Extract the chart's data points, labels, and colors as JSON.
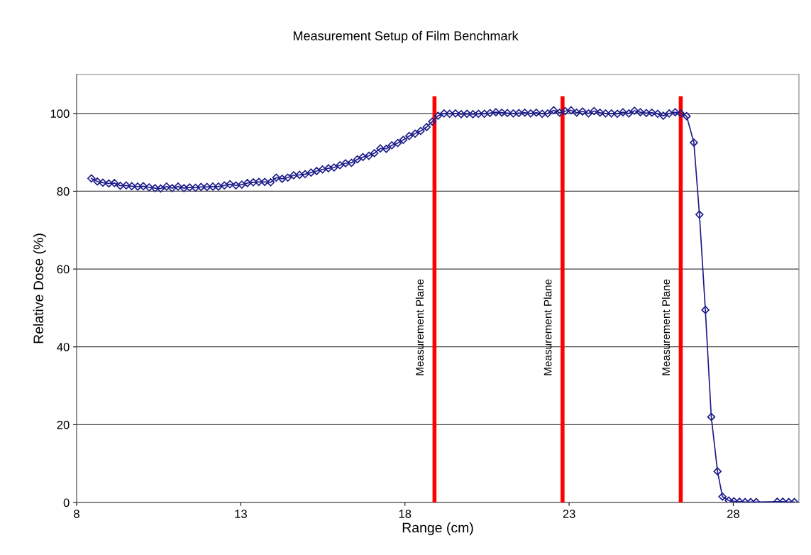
{
  "chart_data": {
    "type": "line",
    "title": "Measurement Setup of Film Benchmark",
    "xlabel": "Range (cm)",
    "ylabel": "Relative Dose (%)",
    "xlim": [
      8,
      30
    ],
    "xticks": [
      8,
      13,
      18,
      23,
      28
    ],
    "ylim": [
      0,
      110
    ],
    "yticks": [
      0,
      20,
      40,
      60,
      80,
      100
    ],
    "grid": "y",
    "marker": "diamond",
    "line_style": "solid",
    "series": [
      {
        "color": "#1c1c8a",
        "x": [
          8.45,
          8.63,
          8.8,
          8.98,
          9.15,
          9.33,
          9.51,
          9.68,
          9.86,
          10.03,
          10.21,
          10.39,
          10.56,
          10.74,
          10.91,
          11.09,
          11.27,
          11.44,
          11.62,
          11.79,
          11.97,
          12.15,
          12.32,
          12.5,
          12.67,
          12.85,
          13.03,
          13.2,
          13.38,
          13.55,
          13.73,
          13.91,
          14.08,
          14.26,
          14.43,
          14.61,
          14.79,
          14.96,
          15.14,
          15.31,
          15.49,
          15.67,
          15.84,
          16.02,
          16.19,
          16.37,
          16.55,
          16.72,
          16.9,
          17.07,
          17.25,
          17.43,
          17.6,
          17.78,
          17.95,
          18.13,
          18.31,
          18.48,
          18.66,
          18.83,
          19.01,
          19.19,
          19.36,
          19.54,
          19.71,
          19.89,
          20.07,
          20.24,
          20.42,
          20.59,
          20.77,
          20.95,
          21.12,
          21.3,
          21.47,
          21.65,
          21.83,
          22.0,
          22.18,
          22.35,
          22.53,
          22.71,
          22.88,
          23.06,
          23.23,
          23.41,
          23.59,
          23.76,
          23.94,
          24.11,
          24.29,
          24.47,
          24.64,
          24.82,
          24.99,
          25.17,
          25.35,
          25.52,
          25.7,
          25.87,
          26.05,
          26.23,
          26.4,
          26.58,
          26.8,
          26.97,
          27.15,
          27.33,
          27.52,
          27.67,
          27.86,
          28.02,
          28.19,
          28.36,
          28.53,
          28.7,
          29.34,
          29.51,
          29.69,
          29.86
        ],
        "values": [
          83.3,
          82.5,
          82.2,
          82.0,
          82.1,
          81.4,
          81.5,
          81.3,
          81.2,
          81.3,
          81.0,
          80.8,
          80.7,
          81.2,
          80.8,
          81.2,
          80.8,
          81.0,
          80.9,
          81.1,
          81.1,
          81.2,
          81.2,
          81.5,
          81.8,
          81.5,
          81.7,
          82.1,
          82.3,
          82.4,
          82.4,
          82.3,
          83.5,
          83.2,
          83.5,
          84.1,
          84.2,
          84.4,
          84.8,
          85.2,
          85.6,
          85.9,
          86.1,
          86.7,
          87.2,
          87.3,
          88.2,
          88.8,
          89.1,
          89.8,
          91.0,
          90.9,
          91.8,
          92.4,
          93.2,
          94.2,
          94.8,
          95.5,
          96.5,
          97.9,
          99.4,
          100.0,
          99.9,
          100.0,
          99.8,
          99.9,
          99.8,
          99.9,
          99.9,
          100.1,
          100.3,
          100.2,
          100.1,
          100.0,
          100.1,
          100.2,
          100.0,
          100.2,
          99.9,
          100.0,
          100.8,
          100.2,
          100.6,
          100.8,
          100.2,
          100.5,
          100.0,
          100.6,
          100.2,
          100.0,
          100.0,
          99.9,
          100.3,
          100.0,
          100.7,
          100.3,
          100.1,
          100.2,
          99.9,
          99.4,
          100.0,
          100.3,
          100.0,
          99.3,
          92.5,
          74.0,
          49.5,
          22.0,
          8.0,
          1.5,
          0.5,
          0.3,
          0.2,
          0.1,
          0.1,
          0.1,
          0.2,
          0.2,
          0.1,
          0.1
        ]
      }
    ],
    "ref_lines": [
      {
        "axis": "x",
        "value": 18.9,
        "label": "Measurement Plane",
        "color": "#ff0000"
      },
      {
        "axis": "x",
        "value": 22.8,
        "label": "Measurement Plane",
        "color": "#ff0000"
      },
      {
        "axis": "x",
        "value": 26.4,
        "label": "Measurement Plane",
        "color": "#ff0000"
      }
    ]
  }
}
